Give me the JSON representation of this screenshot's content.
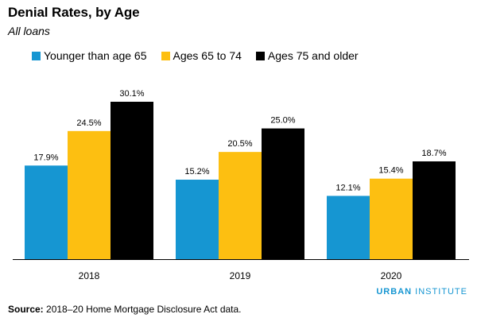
{
  "chart_data": {
    "type": "bar",
    "title": "Denial Rates, by Age",
    "subtitle": "All loans",
    "categories": [
      "2018",
      "2019",
      "2020"
    ],
    "series": [
      {
        "name": "Younger than age 65",
        "color": "#1696d2",
        "values": [
          17.9,
          15.2,
          12.1
        ],
        "labels": [
          "17.9%",
          "15.2%",
          "12.1%"
        ]
      },
      {
        "name": "Ages 65 to 74",
        "color": "#fdbf11",
        "values": [
          24.5,
          20.5,
          15.4
        ],
        "labels": [
          "24.5%",
          "20.5%",
          "15.4%"
        ]
      },
      {
        "name": "Ages 75 and older",
        "color": "#000000",
        "values": [
          30.1,
          25.0,
          18.7
        ],
        "labels": [
          "30.1%",
          "25.0%",
          "18.7%"
        ]
      }
    ],
    "xlabel": "",
    "ylabel": "",
    "ylim": [
      0,
      30.1
    ],
    "grid": false,
    "legend_position": "top-left"
  },
  "source": {
    "label": "Source:",
    "text": "2018–20 Home Mortgage Disclosure Act data."
  },
  "branding": {
    "first": "URBAN",
    "second": "INSTITUTE"
  }
}
